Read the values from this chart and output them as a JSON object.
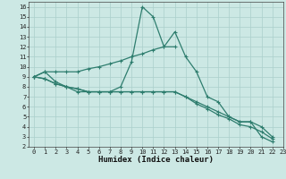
{
  "background_color": "#cce8e4",
  "grid_color": "#aacfcb",
  "line_color": "#2e7d6e",
  "series": [
    {
      "x": [
        0,
        1,
        2,
        3,
        4,
        5,
        6,
        7,
        8,
        9,
        10,
        11,
        12,
        13,
        14,
        15,
        16,
        17,
        18,
        19,
        20,
        21,
        22
      ],
      "y": [
        9,
        9.5,
        8.5,
        8,
        7.5,
        7.5,
        7.5,
        7.5,
        8,
        10.5,
        16,
        15,
        12,
        13.5,
        11,
        9.5,
        7,
        6.5,
        5,
        4.5,
        4.5,
        3,
        2.5
      ]
    },
    {
      "x": [
        0,
        1,
        2,
        3,
        4,
        5,
        6,
        7,
        8,
        9,
        10,
        11,
        12,
        13
      ],
      "y": [
        9,
        9.5,
        9.5,
        9.5,
        9.5,
        9.8,
        10,
        10.3,
        10.6,
        11,
        11.3,
        11.7,
        12,
        12
      ]
    },
    {
      "x": [
        0,
        1,
        2,
        3,
        4,
        5,
        6,
        7,
        8,
        9,
        10,
        11,
        12,
        13,
        14,
        15,
        16,
        17,
        18,
        19,
        20,
        21,
        22
      ],
      "y": [
        9,
        8.8,
        8.3,
        8,
        7.8,
        7.5,
        7.5,
        7.5,
        7.5,
        7.5,
        7.5,
        7.5,
        7.5,
        7.5,
        7,
        6.5,
        6,
        5.5,
        5,
        4.5,
        4.5,
        4,
        3
      ]
    },
    {
      "x": [
        0,
        1,
        2,
        3,
        4,
        5,
        6,
        7,
        8,
        9,
        10,
        11,
        12,
        13,
        14,
        15,
        16,
        17,
        18,
        19,
        20,
        21,
        22
      ],
      "y": [
        9,
        8.8,
        8.3,
        8,
        7.8,
        7.5,
        7.5,
        7.5,
        7.5,
        7.5,
        7.5,
        7.5,
        7.5,
        7.5,
        7,
        6.3,
        5.8,
        5.2,
        4.8,
        4.2,
        4,
        3.5,
        2.8
      ]
    }
  ],
  "xlim": [
    -0.5,
    23
  ],
  "ylim": [
    2,
    16.5
  ],
  "xticks": [
    0,
    1,
    2,
    3,
    4,
    5,
    6,
    7,
    8,
    9,
    10,
    11,
    12,
    13,
    14,
    15,
    16,
    17,
    18,
    19,
    20,
    21,
    22,
    23
  ],
  "yticks": [
    2,
    3,
    4,
    5,
    6,
    7,
    8,
    9,
    10,
    11,
    12,
    13,
    14,
    15,
    16
  ],
  "xlabel": "Humidex (Indice chaleur)",
  "xlabel_fontsize": 6.5,
  "tick_fontsize": 5
}
